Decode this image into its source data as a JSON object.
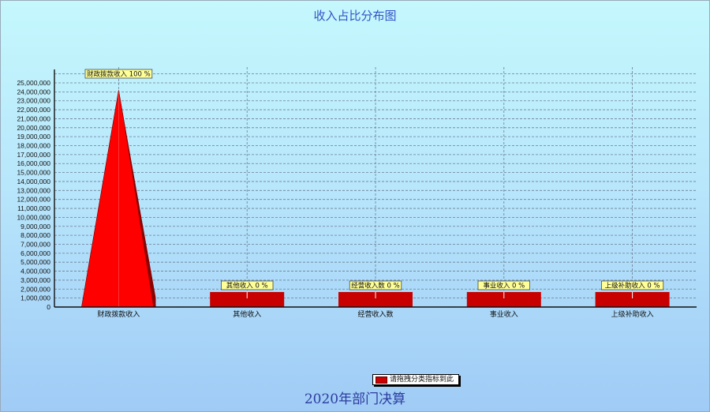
{
  "title": "收入占比分布图",
  "footer": "2020年部门决算",
  "legend": {
    "label": "请拖拽分类指标到此",
    "color": "#cc0000"
  },
  "colors": {
    "peak": "#ff0000",
    "bar": "#c80000",
    "label_bg": "#ffff99"
  },
  "chart_data": {
    "type": "bar",
    "title": "收入占比分布图",
    "xlabel": "",
    "ylabel": "",
    "ylim": [
      0,
      25000000
    ],
    "grid": true,
    "legend_position": "bottom",
    "categories": [
      "财政拨款收入",
      "其他收入",
      "经营收入数",
      "事业收入",
      "上级补助收入"
    ],
    "values": [
      24200000,
      0,
      0,
      0,
      0
    ],
    "data_labels": [
      "财政拨款收入 100 %",
      "其他收入  0 %",
      "经营收入数 0 %",
      "事业收入  0 %",
      "上级补助收入  0 %"
    ],
    "y_ticks": [
      "0",
      "1,000,000",
      "2,000,000",
      "3,000,000",
      "4,000,000",
      "5,000,000",
      "6,000,000",
      "7,000,000",
      "8,000,000",
      "9,000,000",
      "10,000,000",
      "11,000,000",
      "12,000,000",
      "13,000,000",
      "14,000,000",
      "15,000,000",
      "16,000,000",
      "17,000,000",
      "18,000,000",
      "19,000,000",
      "20,000,000",
      "21,000,000",
      "22,000,000",
      "23,000,000",
      "24,000,000",
      "25,000,000"
    ],
    "series": [
      {
        "name": "请拖拽分类指标到此",
        "values": [
          24200000,
          0,
          0,
          0,
          0
        ]
      }
    ]
  }
}
